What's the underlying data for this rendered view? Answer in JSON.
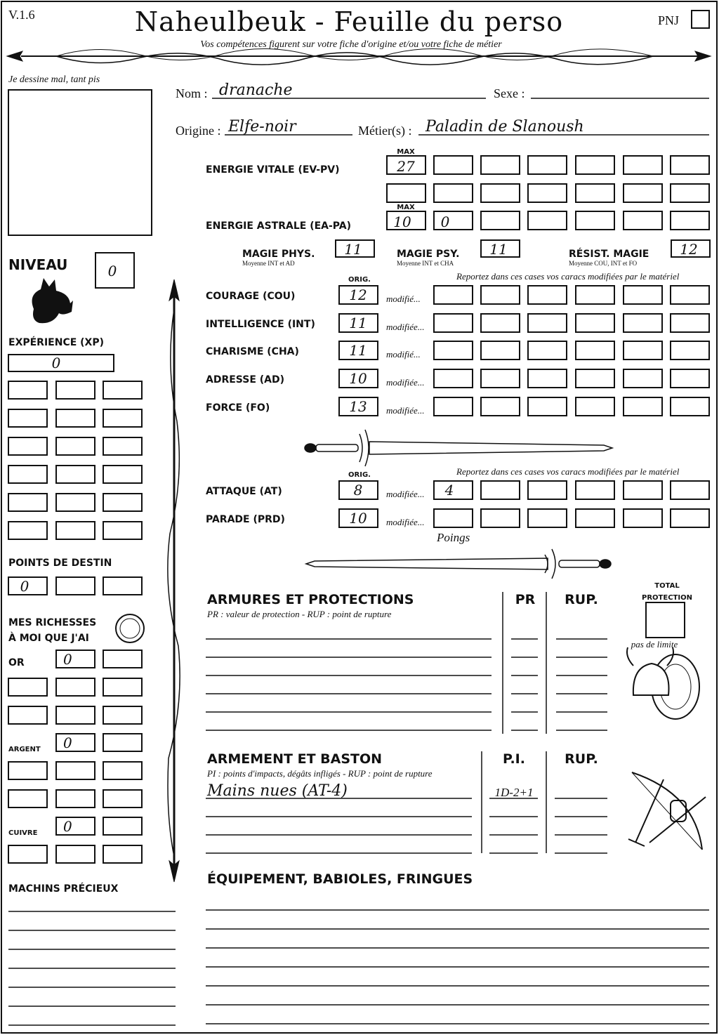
{
  "header": {
    "version": "V.1.6",
    "title": "Naheulbeuk - Feuille du perso",
    "subtitle": "Vos compétences figurent sur votre fiche d'origine et/ou votre fiche de métier",
    "npc_label": "PNJ"
  },
  "portrait": {
    "label": "Je dessine mal, tant pis"
  },
  "identity": {
    "name_label": "Nom :",
    "name": "dranache",
    "sex_label": "Sexe :",
    "origin_label": "Origine :",
    "origin": "Elfe-noir",
    "job_label": "Métier(s) :",
    "job": "Paladin de Slanoush"
  },
  "level": {
    "label": "NIVEAU",
    "value": 0
  },
  "experience": {
    "label": "EXPÉRIENCE (XP)",
    "value": 0
  },
  "destiny": {
    "label": "POINTS DE DESTIN",
    "value": 0
  },
  "wealth": {
    "label_line1": "MES RICHESSES",
    "label_line2": "À MOI QUE J'AI",
    "gold_label": "OR",
    "gold": 0,
    "silver_label": "ARGENT",
    "silver": 0,
    "copper_label": "CUIVRE",
    "copper": 0
  },
  "valuables": {
    "label": "MACHINS PRÉCIEUX"
  },
  "energy": {
    "vital_label": "ENERGIE VITALE (EV-PV)",
    "vital_max_label": "MAX",
    "vital_max": 27,
    "astral_label": "ENERGIE ASTRALE (EA-PA)",
    "astral_max_label": "MAX",
    "astral_max": 10,
    "astral_current": 0
  },
  "magic": {
    "phys_label": "MAGIE PHYS.",
    "phys": 11,
    "phys_note": "Moyenne INT et AD",
    "psy_label": "MAGIE PSY.",
    "psy": 11,
    "psy_note": "Moyenne INT et CHA",
    "resist_label": "RÉSIST. MAGIE",
    "resist": 12,
    "resist_note": "Moyenne COU, INT et FO"
  },
  "stats": {
    "orig_label": "ORIG.",
    "note": "Reportez dans ces cases vos caracs modifiées par le matériel",
    "rows": [
      {
        "label": "COURAGE (COU)",
        "value": 12,
        "modified_label": "modifié..."
      },
      {
        "label": "INTELLIGENCE (INT)",
        "value": 11,
        "modified_label": "modifiée..."
      },
      {
        "label": "CHARISME (CHA)",
        "value": 11,
        "modified_label": "modifié..."
      },
      {
        "label": "ADRESSE (AD)",
        "value": 10,
        "modified_label": "modifiée..."
      },
      {
        "label": "FORCE (FO)",
        "value": 13,
        "modified_label": "modifiée..."
      }
    ]
  },
  "combat": {
    "orig_label": "ORIG.",
    "note": "Reportez dans ces cases vos caracs modifiées par le matériel",
    "rows": [
      {
        "label": "ATTAQUE (AT)",
        "value": 8,
        "modified_label": "modifiée...",
        "modified": 4
      },
      {
        "label": "PARADE (PRD)",
        "value": 10,
        "modified_label": "modifiée..."
      }
    ],
    "annotation": "Poings"
  },
  "armor": {
    "title": "ARMURES ET PROTECTIONS",
    "pr_label": "PR",
    "rup_label": "RUP.",
    "note": "PR : valeur de protection - RUP : point de rupture",
    "total_label_line1": "TOTAL",
    "total_label_line2": "PROTECTION",
    "no_limit": "pas de limite"
  },
  "weapons": {
    "title": "ARMEMENT ET BASTON",
    "pi_label": "P.I.",
    "rup_label": "RUP.",
    "note": "PI : points d'impacts, dégâts infligés - RUP : point de rupture",
    "rows": [
      {
        "name": "Mains nues (AT-4)",
        "pi": "1D-2+1"
      }
    ]
  },
  "equipment": {
    "title": "ÉQUIPEMENT, BABIOLES, FRINGUES"
  }
}
